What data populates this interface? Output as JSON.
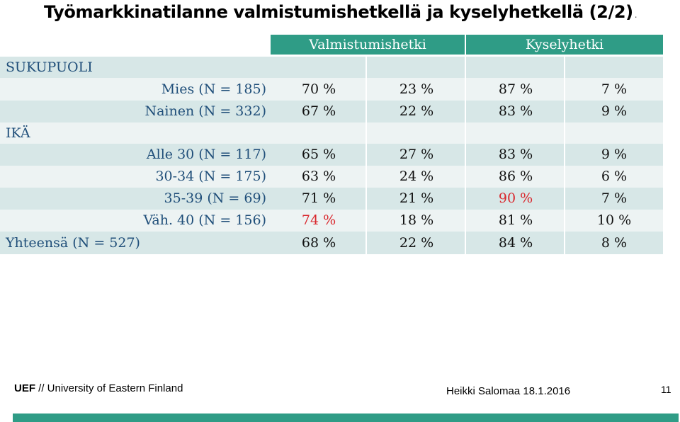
{
  "title": "Työmarkkinatilanne valmistumishetkellä ja kyselyhetkellä (2/2)",
  "title_dot": ".",
  "columns": {
    "group1": "Valmistumishetki",
    "group2": "Kyselyhetki"
  },
  "sections": {
    "gender": "SUKUPUOLI",
    "age": "IKÄ"
  },
  "rows": [
    {
      "label": "Mies (N = 185)",
      "values": [
        "70 %",
        "23 %",
        "87 %",
        "7 %"
      ]
    },
    {
      "label": "Nainen (N = 332)",
      "values": [
        "67 %",
        "22 %",
        "83 %",
        "9 %"
      ]
    },
    {
      "label": "Alle 30 (N = 117)",
      "values": [
        "65 %",
        "27 %",
        "83 %",
        "9 %"
      ]
    },
    {
      "label": "30-34 (N = 175)",
      "values": [
        "63 %",
        "24 %",
        "86 %",
        "6 %"
      ]
    },
    {
      "label": "35-39 (N = 69)",
      "values": [
        "71 %",
        "21 %",
        "90 %",
        "7 %"
      ]
    },
    {
      "label": "Väh. 40 (N = 156)",
      "values": [
        "74 %",
        "18 %",
        "81 %",
        "10 %"
      ]
    }
  ],
  "total": {
    "label": "Yhteensä (N = 527)",
    "values": [
      "68 %",
      "22 %",
      "84 %",
      "8 %"
    ]
  },
  "highlight_color": "#d9262c",
  "header_color": "#2f9c86",
  "footer": {
    "org_abbr": "UEF",
    "org_rest": " // University of Eastern Finland",
    "author_date": "Heikki Salomaa 18.1.2016",
    "page": "11"
  }
}
